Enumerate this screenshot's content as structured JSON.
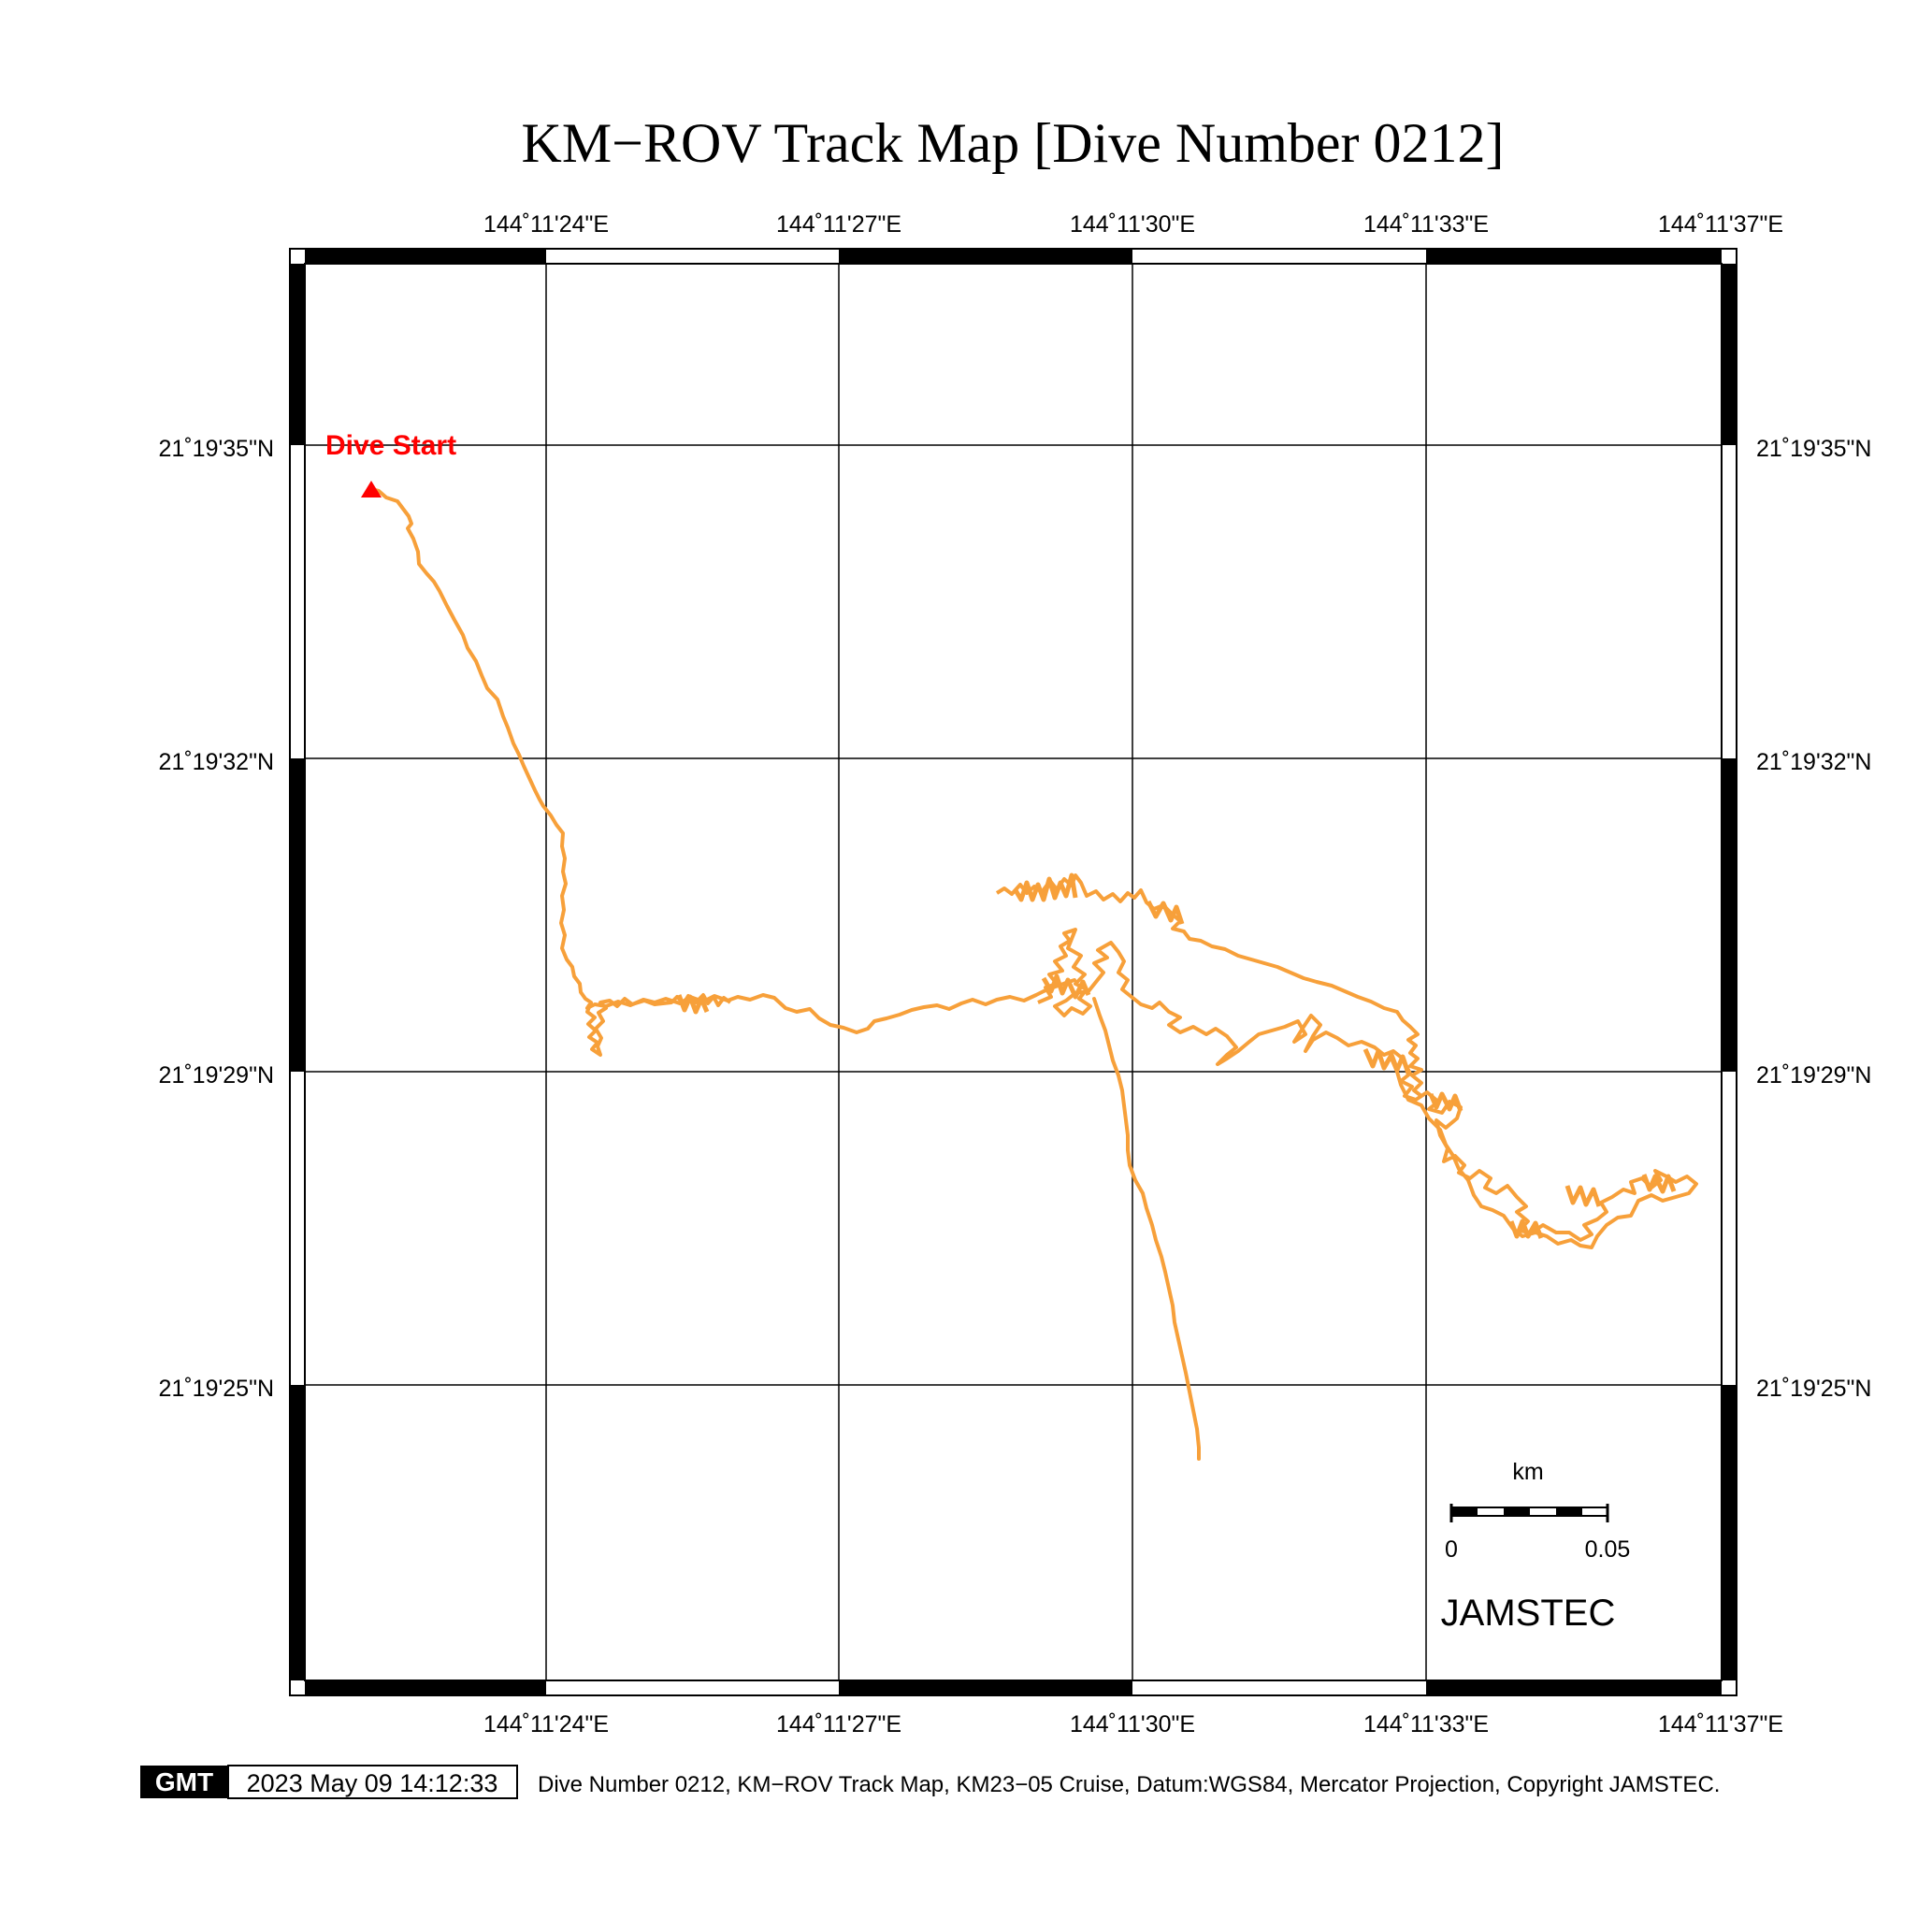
{
  "title": "KM−ROV Track Map [Dive Number 0212]",
  "lon_ticks": [
    "144˚11'24\"E",
    "144˚11'27\"E",
    "144˚11'30\"E",
    "144˚11'33\"E",
    "144˚11'37\"E"
  ],
  "lat_ticks": [
    "21˚19'35\"N",
    "21˚19'32\"N",
    "21˚19'29\"N",
    "21˚19'25\"N"
  ],
  "start_label": "Dive Start",
  "scalebar": {
    "unit": "km",
    "start": "0",
    "end": "0.05"
  },
  "organization": "JAMSTEC",
  "footer": {
    "logo": "GMT",
    "timestamp": "2023 May 09 14:12:33",
    "caption": "Dive Number 0212, KM−ROV Track Map, KM23−05 Cruise, Datum:WGS84, Mercator Projection, Copyright JAMSTEC."
  },
  "colors": {
    "track": "#F7A03A",
    "start_marker": "#FF0000",
    "frame": "#000000"
  }
}
